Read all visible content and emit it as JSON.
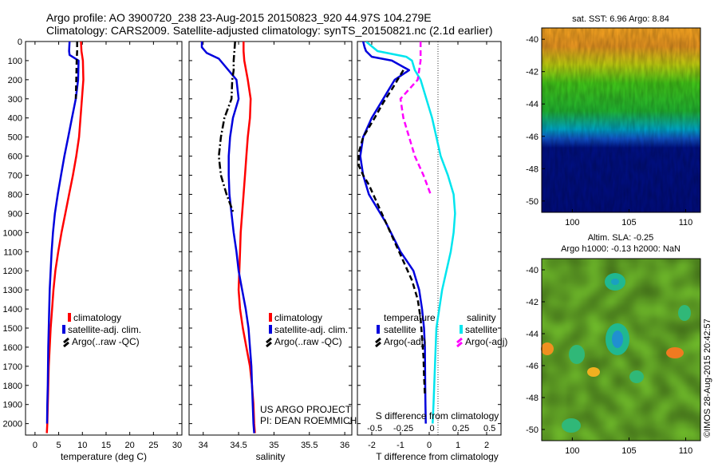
{
  "header": {
    "line1": "Argo profile: AO 3900720_238 23-Aug-2015 20150823_920 44.97S 104.279E",
    "line2": "Climatology: CARS2009. Satellite-adjusted climatology: synTS_20150821.nc (2.1d earlier)"
  },
  "colors": {
    "climatology": "#ff0000",
    "satellite": "#0000dd",
    "argo": "#000000",
    "satellite_salinity": "#00e5ee",
    "argo_salinity": "#ff00ff"
  },
  "credit": {
    "project": "US ARGO PROJECT",
    "pi": "PI: DEAN ROEMMICH"
  },
  "stamp": "©IMOS 28-Aug-2015 20:42:57",
  "chart_data": [
    {
      "type": "line",
      "xlabel": "temperature (deg C)",
      "xlim": [
        -2,
        31
      ],
      "ylim": [
        2060,
        0
      ],
      "xticks": [
        0,
        5,
        10,
        15,
        20,
        25,
        30
      ],
      "yticks": [
        0,
        100,
        200,
        300,
        400,
        500,
        600,
        700,
        800,
        900,
        1000,
        1100,
        1200,
        1300,
        1400,
        1500,
        1600,
        1700,
        1800,
        1900,
        2000
      ],
      "legend": [
        "climatology",
        "satellite-adj. clim.",
        "Argo(..raw -QC)"
      ],
      "series": [
        {
          "name": "climatology",
          "style": "solid",
          "color": "#ff0000",
          "x": [
            9.7,
            9.8,
            10.1,
            10.2,
            9.9,
            9.6,
            9.3,
            8.7,
            8.0,
            7.2,
            6.4,
            5.6,
            4.9,
            4.3,
            3.9,
            3.6,
            3.3,
            3.1,
            2.9,
            2.8,
            2.7,
            2.6,
            2.5
          ],
          "y": [
            0,
            50,
            100,
            200,
            300,
            400,
            500,
            600,
            700,
            800,
            900,
            1000,
            1100,
            1200,
            1300,
            1400,
            1500,
            1600,
            1700,
            1800,
            1900,
            2000,
            2050
          ]
        },
        {
          "name": "satellite-adj. clim.",
          "style": "solid",
          "color": "#0000dd",
          "x": [
            7.3,
            7.2,
            7.3,
            9.2,
            9.1,
            8.6,
            7.8,
            7.0,
            6.2,
            5.5,
            4.8,
            4.2,
            3.8,
            3.5,
            3.3,
            3.1,
            3.0,
            2.9,
            2.8,
            2.75,
            2.7,
            2.6,
            2.55
          ],
          "y": [
            0,
            50,
            70,
            100,
            200,
            300,
            400,
            500,
            600,
            700,
            800,
            900,
            1000,
            1100,
            1200,
            1300,
            1400,
            1500,
            1600,
            1700,
            1800,
            1900,
            2000
          ]
        },
        {
          "name": "Argo(..raw -QC)",
          "style": "dashed",
          "color": "#000000",
          "x": [
            8.9,
            8.9,
            8.8,
            8.7,
            8.6
          ],
          "y": [
            0,
            50,
            100,
            200,
            300
          ]
        }
      ]
    },
    {
      "type": "line",
      "xlabel": "salinity",
      "xlim": [
        33.8,
        36.1
      ],
      "ylim": [
        2060,
        0
      ],
      "xticks": [
        34,
        34.5,
        35,
        35.5,
        36
      ],
      "legend": [
        "climatology",
        "satellite-adj. clim.",
        "Argo(..raw -QC)"
      ],
      "series": [
        {
          "name": "climatology",
          "style": "solid",
          "color": "#ff0000",
          "x": [
            34.57,
            34.57,
            34.58,
            34.63,
            34.67,
            34.66,
            34.63,
            34.61,
            34.59,
            34.57,
            34.55,
            34.53,
            34.52,
            34.51,
            34.5,
            34.52,
            34.56,
            34.61,
            34.66,
            34.69,
            34.71,
            34.72,
            34.73
          ],
          "y": [
            0,
            50,
            100,
            200,
            300,
            400,
            500,
            600,
            700,
            800,
            900,
            1000,
            1100,
            1200,
            1300,
            1400,
            1500,
            1600,
            1700,
            1800,
            1900,
            2000,
            2050
          ]
        },
        {
          "name": "satellite-adj. clim.",
          "style": "solid",
          "color": "#0000dd",
          "x": [
            33.98,
            33.98,
            34.05,
            34.22,
            34.47,
            34.5,
            34.42,
            34.38,
            34.36,
            34.36,
            34.37,
            34.4,
            34.43,
            34.47,
            34.5,
            34.55,
            34.6,
            34.64,
            34.66,
            34.68,
            34.69,
            34.7,
            34.71,
            34.72
          ],
          "y": [
            0,
            30,
            60,
            90,
            200,
            300,
            400,
            500,
            600,
            700,
            800,
            900,
            1000,
            1100,
            1200,
            1300,
            1400,
            1500,
            1600,
            1700,
            1800,
            1900,
            2000,
            2050
          ]
        },
        {
          "name": "Argo(..raw -QC)",
          "style": "dashdot",
          "color": "#000000",
          "x": [
            34.45,
            34.44,
            34.43,
            34.43,
            34.41,
            34.4,
            34.3,
            34.25,
            34.22,
            34.25,
            34.33,
            34.43
          ],
          "y": [
            0,
            50,
            100,
            150,
            200,
            300,
            400,
            500,
            600,
            700,
            800,
            900
          ]
        }
      ]
    },
    {
      "type": "line",
      "xlabel": "T difference from climatology",
      "xlabel_top": "S difference from climatology",
      "xlim": [
        -2.5,
        2.5
      ],
      "ylim": [
        2060,
        0
      ],
      "xticks": [
        -2,
        -1,
        0,
        1,
        2
      ],
      "xticks_salinity": [
        "-0.5",
        "-0.25",
        "0",
        "0.25",
        "0.5"
      ],
      "legend_left_title": "temperature",
      "legend_right_title": "salinity",
      "legend": [
        "satellite",
        "Argo(-adj)",
        "satellite",
        "Argo(-adj)"
      ],
      "series": [
        {
          "name": "satellite",
          "quantity": "temperature",
          "style": "solid",
          "color": "#0000dd",
          "x": [
            -2.3,
            -2.25,
            -2.2,
            -2.0,
            -1.3,
            -0.7,
            -1.2,
            -1.6,
            -2.0,
            -2.3,
            -2.4,
            -2.3,
            -2.1,
            -1.9,
            -1.5,
            -1.0,
            -0.55,
            -0.35,
            -0.25,
            -0.18,
            -0.15,
            -0.14,
            -0.13,
            -0.12
          ],
          "y": [
            0,
            30,
            50,
            80,
            100,
            150,
            200,
            300,
            400,
            500,
            600,
            700,
            800,
            850,
            950,
            1100,
            1200,
            1300,
            1400,
            1500,
            1600,
            1800,
            1900,
            2000
          ]
        },
        {
          "name": "Argo(-adj)",
          "quantity": "temperature",
          "style": "dashed",
          "color": "#000000",
          "x": [
            -0.9,
            -1.3,
            -1.6,
            -1.9,
            -2.1,
            -2.3,
            -2.45,
            -2.45,
            -2.3,
            -2.1,
            -1.8,
            -1.5,
            -1.2,
            -0.9,
            -0.6,
            -0.4,
            -0.3,
            -0.25,
            -0.2,
            -0.18,
            -0.15
          ],
          "y": [
            150,
            250,
            320,
            400,
            450,
            500,
            580,
            650,
            700,
            750,
            850,
            950,
            1050,
            1150,
            1250,
            1350,
            1450,
            1550,
            1650,
            1750,
            1850
          ]
        },
        {
          "name": "satellite",
          "quantity": "salinity",
          "style": "solid",
          "color": "#00e5ee",
          "x": [
            -2.2,
            -1.8,
            -0.8,
            -0.6,
            -0.5,
            -0.3,
            0.1,
            0.4,
            0.65,
            0.85,
            0.9,
            0.85,
            0.75,
            0.6,
            0.45,
            0.35,
            0.25,
            0.2,
            0.15,
            0.12
          ],
          "y": [
            0,
            50,
            80,
            100,
            150,
            200,
            400,
            600,
            700,
            800,
            900,
            1000,
            1100,
            1200,
            1300,
            1400,
            1500,
            1700,
            1900,
            2000
          ]
        },
        {
          "name": "Argo(-adj)",
          "quantity": "salinity",
          "style": "dashed",
          "color": "#ff00ff",
          "x": [
            -0.3,
            -0.3,
            -0.4,
            -1.0,
            -0.9,
            -0.7,
            -0.5,
            -0.2,
            0.05
          ],
          "y": [
            0,
            100,
            200,
            300,
            400,
            500,
            600,
            700,
            800
          ]
        }
      ]
    },
    {
      "type": "heatmap",
      "title": "sat. SST: 6.96 Argo: 8.84",
      "xticks": [
        100,
        105,
        110
      ],
      "yticks": [
        -40,
        -42,
        -44,
        -46,
        -48,
        -50
      ],
      "xlim": [
        97.3,
        111.3
      ],
      "ylim": [
        -50.7,
        -39.3
      ],
      "argo_position": [
        104.279,
        -44.97
      ]
    },
    {
      "type": "heatmap",
      "title": "Altim. SLA: -0.25",
      "subtitle": "Argo h1000: -0.13 h2000: NaN",
      "xticks": [
        100,
        105,
        110
      ],
      "yticks": [
        -40,
        -42,
        -44,
        -46,
        -48,
        -50
      ],
      "xlim": [
        97.3,
        111.3
      ],
      "ylim": [
        -50.7,
        -39.3
      ],
      "argo_position": [
        104.279,
        -44.97
      ]
    }
  ]
}
